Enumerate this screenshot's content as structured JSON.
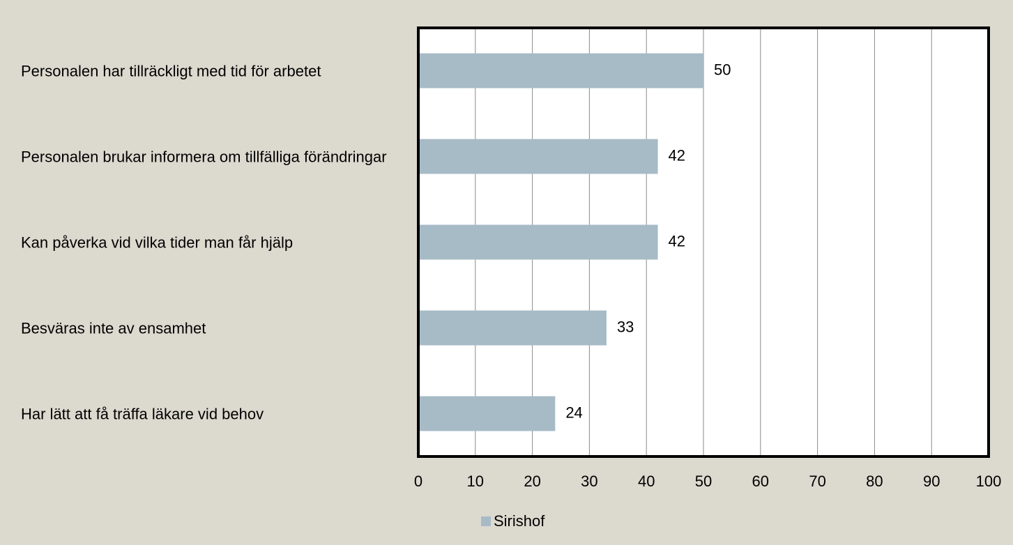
{
  "chart_data": {
    "type": "barh",
    "categories": [
      "Personalen har tillräckligt med tid för arbetet",
      "Personalen brukar informera om tillfälliga förändringar",
      "Kan påverka vid vilka tider man får hjälp",
      "Besväras inte av ensamhet",
      "Har lätt att få träffa läkare vid behov"
    ],
    "series": [
      {
        "name": "Sirishof",
        "color": "#a7bbc6",
        "values": [
          50,
          42,
          42,
          33,
          24
        ]
      }
    ],
    "xlim": [
      0,
      100
    ],
    "xticks": [
      0,
      10,
      20,
      30,
      40,
      50,
      60,
      70,
      80,
      90,
      100
    ],
    "grid": true,
    "legend": "bottom"
  }
}
